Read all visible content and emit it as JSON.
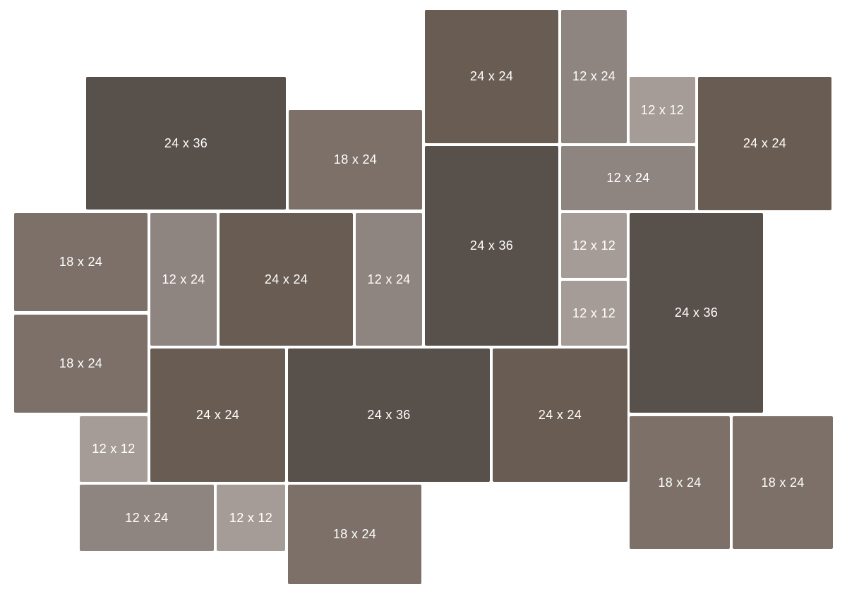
{
  "tiles": [
    {
      "label": "24 x 24",
      "size": "24x24"
    },
    {
      "label": "12 x 24",
      "size": "12x24"
    },
    {
      "label": "12 x 12",
      "size": "12x12"
    },
    {
      "label": "24 x 24",
      "size": "24x24"
    },
    {
      "label": "24 x 36",
      "size": "24x36"
    },
    {
      "label": "18 x 24",
      "size": "18x24"
    },
    {
      "label": "24 x 36",
      "size": "24x36"
    },
    {
      "label": "12 x 24",
      "size": "12x24"
    },
    {
      "label": "18 x 24",
      "size": "18x24"
    },
    {
      "label": "12 x 24",
      "size": "12x24"
    },
    {
      "label": "24 x 24",
      "size": "24x24"
    },
    {
      "label": "12 x 24",
      "size": "12x24"
    },
    {
      "label": "12 x 12",
      "size": "12x12"
    },
    {
      "label": "24 x 36",
      "size": "24x36"
    },
    {
      "label": "12 x 12",
      "size": "12x12"
    },
    {
      "label": "18 x 24",
      "size": "18x24"
    },
    {
      "label": "24 x 24",
      "size": "24x24"
    },
    {
      "label": "24 x 36",
      "size": "24x36"
    },
    {
      "label": "24 x 24",
      "size": "24x24"
    },
    {
      "label": "12 x 12",
      "size": "12x12"
    },
    {
      "label": "18 x 24",
      "size": "18x24"
    },
    {
      "label": "18 x 24",
      "size": "18x24"
    },
    {
      "label": "12 x 24",
      "size": "12x24"
    },
    {
      "label": "12 x 12",
      "size": "12x12"
    },
    {
      "label": "18 x 24",
      "size": "18x24"
    }
  ],
  "colors": {
    "12x12": "#a59c97",
    "12x24": "#8e8480",
    "18x24": "#7c7068",
    "24x24": "#695c53",
    "24x36": "#58504b"
  }
}
